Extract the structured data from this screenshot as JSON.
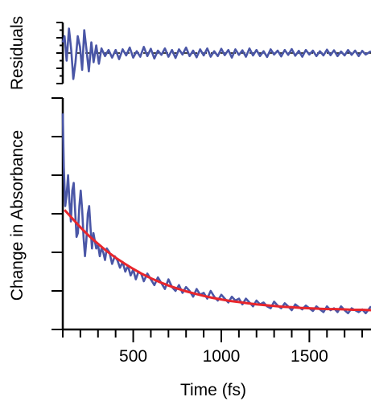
{
  "chart_data": [
    {
      "type": "line",
      "ylabel": "Residuals",
      "xlim": [
        100,
        1850
      ],
      "ylim": [
        -1,
        1
      ],
      "reference_line": {
        "y": 0,
        "style": "dashed",
        "color": "#000000"
      },
      "series": [
        {
          "color": "#4a56a6",
          "x": [
            100,
            110,
            122,
            135,
            148,
            160,
            172,
            185,
            198,
            210,
            222,
            235,
            248,
            262,
            275,
            290,
            305,
            320,
            340,
            360,
            380,
            400,
            420,
            440,
            460,
            480,
            500,
            520,
            540,
            560,
            580,
            600,
            620,
            640,
            660,
            680,
            700,
            720,
            740,
            760,
            780,
            800,
            820,
            840,
            860,
            880,
            900,
            920,
            940,
            960,
            980,
            1000,
            1020,
            1040,
            1060,
            1080,
            1100,
            1120,
            1140,
            1160,
            1180,
            1200,
            1220,
            1240,
            1260,
            1280,
            1300,
            1320,
            1340,
            1360,
            1380,
            1400,
            1420,
            1440,
            1460,
            1480,
            1500,
            1520,
            1540,
            1560,
            1580,
            1600,
            1620,
            1640,
            1660,
            1680,
            1700,
            1720,
            1740,
            1760,
            1780,
            1800,
            1820,
            1850
          ],
          "values": [
            0.35,
            0.55,
            -0.25,
            0.8,
            0.1,
            -0.85,
            -0.3,
            0.55,
            0.2,
            -0.55,
            0.75,
            0.1,
            -0.6,
            0.35,
            -0.3,
            0.25,
            -0.35,
            0.15,
            -0.1,
            0.1,
            -0.15,
            0.1,
            -0.2,
            0.12,
            -0.08,
            0.18,
            -0.15,
            0.06,
            -0.12,
            0.2,
            -0.1,
            0.14,
            -0.18,
            0.08,
            -0.06,
            0.15,
            -0.12,
            0.1,
            -0.16,
            0.12,
            -0.05,
            0.18,
            -0.1,
            0.08,
            -0.14,
            0.12,
            -0.08,
            0.15,
            -0.12,
            0.06,
            -0.1,
            0.14,
            -0.07,
            0.1,
            -0.15,
            0.12,
            -0.06,
            0.09,
            -0.12,
            0.15,
            -0.08,
            0.1,
            -0.1,
            0.06,
            -0.13,
            0.12,
            -0.05,
            0.08,
            -0.11,
            0.1,
            -0.06,
            0.13,
            -0.09,
            0.07,
            -0.12,
            0.1,
            -0.05,
            0.08,
            -0.1,
            0.06,
            -0.08,
            0.11,
            -0.07,
            0.09,
            -0.1,
            0.05,
            -0.08,
            0.1,
            -0.06,
            0.08,
            -0.1,
            0.07,
            -0.05,
            0.06
          ]
        }
      ]
    },
    {
      "type": "line",
      "ylabel": "Change in Absorbance",
      "xlabel": "Time (fs)",
      "xlim": [
        100,
        1850
      ],
      "ylim": [
        0,
        6
      ],
      "x_ticks": [
        500,
        1000,
        1500
      ],
      "series": [
        {
          "color": "#4a56a6",
          "x": [
            100,
            106,
            114,
            122,
            130,
            138,
            146,
            154,
            162,
            170,
            178,
            186,
            194,
            202,
            210,
            218,
            226,
            234,
            242,
            250,
            258,
            266,
            274,
            282,
            290,
            300,
            310,
            320,
            330,
            340,
            350,
            365,
            380,
            395,
            410,
            425,
            440,
            455,
            470,
            485,
            500,
            515,
            530,
            545,
            560,
            580,
            600,
            620,
            640,
            660,
            680,
            700,
            720,
            740,
            760,
            780,
            800,
            820,
            840,
            860,
            880,
            900,
            920,
            940,
            960,
            980,
            1000,
            1020,
            1040,
            1060,
            1080,
            1100,
            1120,
            1140,
            1160,
            1180,
            1200,
            1220,
            1240,
            1260,
            1280,
            1300,
            1320,
            1340,
            1360,
            1380,
            1400,
            1420,
            1440,
            1460,
            1480,
            1500,
            1520,
            1540,
            1560,
            1580,
            1600,
            1620,
            1640,
            1660,
            1680,
            1700,
            1720,
            1740,
            1760,
            1780,
            1800,
            1820,
            1850
          ],
          "values": [
            5.6,
            4.2,
            3.2,
            3.5,
            4.0,
            3.3,
            2.8,
            3.6,
            3.8,
            3.1,
            2.4,
            2.5,
            3.2,
            3.6,
            3.1,
            2.4,
            1.9,
            2.3,
            3.0,
            3.2,
            2.6,
            2.1,
            2.5,
            2.3,
            2.1,
            2.2,
            1.9,
            2.1,
            2.0,
            1.8,
            2.1,
            2.0,
            1.7,
            1.9,
            1.8,
            1.6,
            1.75,
            1.5,
            1.65,
            1.4,
            1.55,
            1.3,
            1.5,
            1.45,
            1.25,
            1.45,
            1.3,
            1.15,
            1.35,
            1.2,
            1.05,
            1.3,
            1.1,
            1.0,
            1.15,
            0.95,
            1.1,
            1.0,
            0.85,
            1.05,
            0.9,
            0.95,
            0.8,
            1.0,
            0.85,
            0.75,
            0.9,
            0.8,
            0.7,
            0.85,
            0.75,
            0.8,
            0.65,
            0.8,
            0.7,
            0.6,
            0.75,
            0.65,
            0.7,
            0.6,
            0.55,
            0.72,
            0.62,
            0.55,
            0.68,
            0.6,
            0.5,
            0.65,
            0.58,
            0.52,
            0.62,
            0.55,
            0.48,
            0.6,
            0.52,
            0.45,
            0.6,
            0.5,
            0.55,
            0.45,
            0.6,
            0.5,
            0.42,
            0.55,
            0.5,
            0.45,
            0.52,
            0.42,
            0.6
          ]
        },
        {
          "color": "#e8262c",
          "x": [
            110,
            150,
            200,
            250,
            300,
            350,
            400,
            450,
            500,
            550,
            600,
            650,
            700,
            750,
            800,
            850,
            900,
            950,
            1000,
            1050,
            1100,
            1150,
            1200,
            1250,
            1300,
            1350,
            1400,
            1450,
            1500,
            1550,
            1600,
            1650,
            1700,
            1750,
            1800,
            1850
          ],
          "values": [
            3.1,
            2.9,
            2.65,
            2.42,
            2.22,
            2.03,
            1.86,
            1.71,
            1.57,
            1.44,
            1.33,
            1.23,
            1.14,
            1.06,
            0.99,
            0.93,
            0.87,
            0.82,
            0.78,
            0.74,
            0.71,
            0.68,
            0.65,
            0.63,
            0.61,
            0.59,
            0.58,
            0.56,
            0.55,
            0.54,
            0.53,
            0.53,
            0.52,
            0.51,
            0.51,
            0.5
          ]
        }
      ]
    }
  ]
}
